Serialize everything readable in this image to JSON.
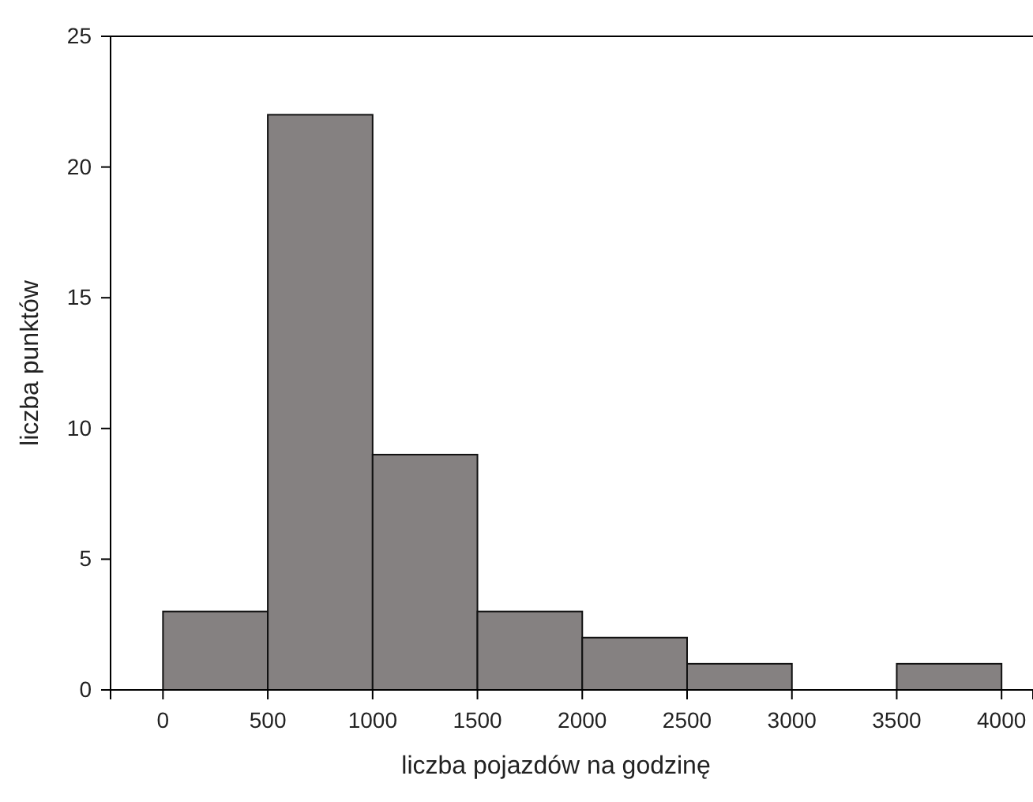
{
  "chart_data": {
    "type": "histogram",
    "xlabel": "liczba pojazdów na godzinę",
    "ylabel": "liczba punktów",
    "bins": [
      0,
      500,
      1000,
      1500,
      2000,
      2500,
      3000,
      3500,
      4000
    ],
    "values": [
      3,
      22,
      9,
      3,
      2,
      1,
      0,
      1
    ],
    "color": "#858181",
    "xlim": [
      -250,
      4150
    ],
    "xticks": [
      0,
      500,
      1000,
      1500,
      2000,
      2500,
      3000,
      3500,
      4000
    ],
    "ylim": [
      0,
      25
    ],
    "yticks": [
      0,
      5,
      10,
      15,
      20,
      25
    ],
    "grid": false
  }
}
